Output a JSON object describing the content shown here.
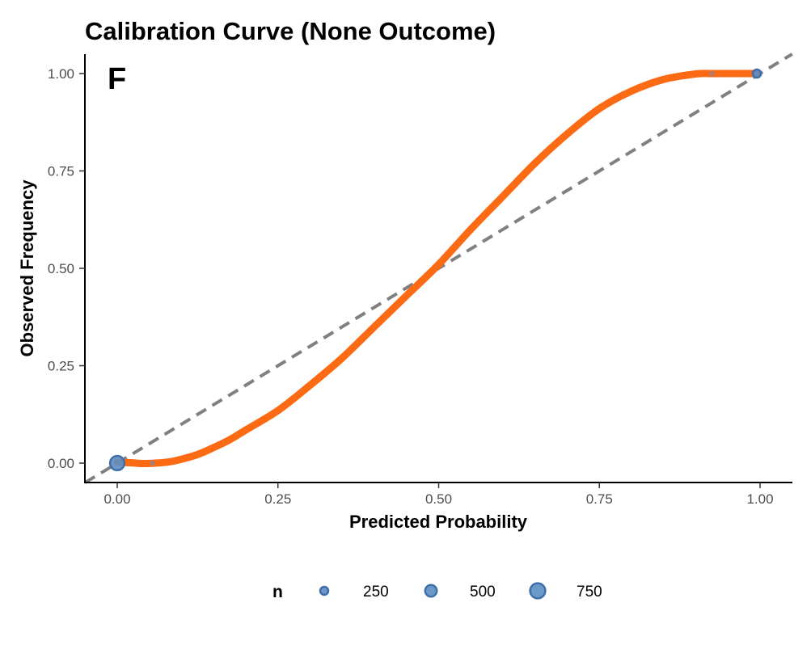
{
  "chart_data": {
    "type": "line",
    "title": "Calibration Curve (None Outcome)",
    "panel_label": "F",
    "xlabel": "Predicted Probability",
    "ylabel": "Observed Frequency",
    "xlim": [
      -0.05,
      1.05
    ],
    "ylim": [
      -0.05,
      1.05
    ],
    "x_ticks": [
      0.0,
      0.25,
      0.5,
      0.75,
      1.0
    ],
    "x_tick_labels": [
      "0.00",
      "0.25",
      "0.50",
      "0.75",
      "1.00"
    ],
    "y_ticks": [
      0.0,
      0.25,
      0.5,
      0.75,
      1.0
    ],
    "y_tick_labels": [
      "0.00",
      "0.25",
      "0.50",
      "0.75",
      "1.00"
    ],
    "grid": false,
    "reference_line": {
      "x": [
        -0.05,
        1.05
      ],
      "y": [
        -0.05,
        1.05
      ],
      "color": "#808080",
      "style": "dashed"
    },
    "series": [
      {
        "type": "line",
        "color": "#fc6a14",
        "x": [
          0.0,
          0.02,
          0.04,
          0.06,
          0.08,
          0.1,
          0.125,
          0.15,
          0.175,
          0.2,
          0.25,
          0.3,
          0.35,
          0.4,
          0.45,
          0.5,
          0.55,
          0.6,
          0.65,
          0.7,
          0.75,
          0.8,
          0.85,
          0.9,
          0.925,
          0.95,
          0.97,
          0.995
        ],
        "y": [
          0.002,
          0.001,
          -0.001,
          0.0,
          0.003,
          0.01,
          0.022,
          0.04,
          0.06,
          0.085,
          0.135,
          0.2,
          0.27,
          0.35,
          0.43,
          0.51,
          0.6,
          0.685,
          0.77,
          0.845,
          0.91,
          0.955,
          0.985,
          0.999,
          1.0,
          1.0,
          1.0,
          1.0
        ]
      },
      {
        "type": "scatter",
        "color": "#5b8ec4",
        "x": [
          0.0,
          0.055,
          0.925,
          0.995
        ],
        "y": [
          0.0,
          0.0,
          1.0,
          1.0
        ],
        "n": [
          800,
          60,
          60,
          300
        ]
      }
    ],
    "legend": {
      "position": "bottom",
      "title": "n",
      "entries": [
        {
          "label": "250",
          "n": 250
        },
        {
          "label": "500",
          "n": 500
        },
        {
          "label": "750",
          "n": 750
        }
      ]
    }
  }
}
